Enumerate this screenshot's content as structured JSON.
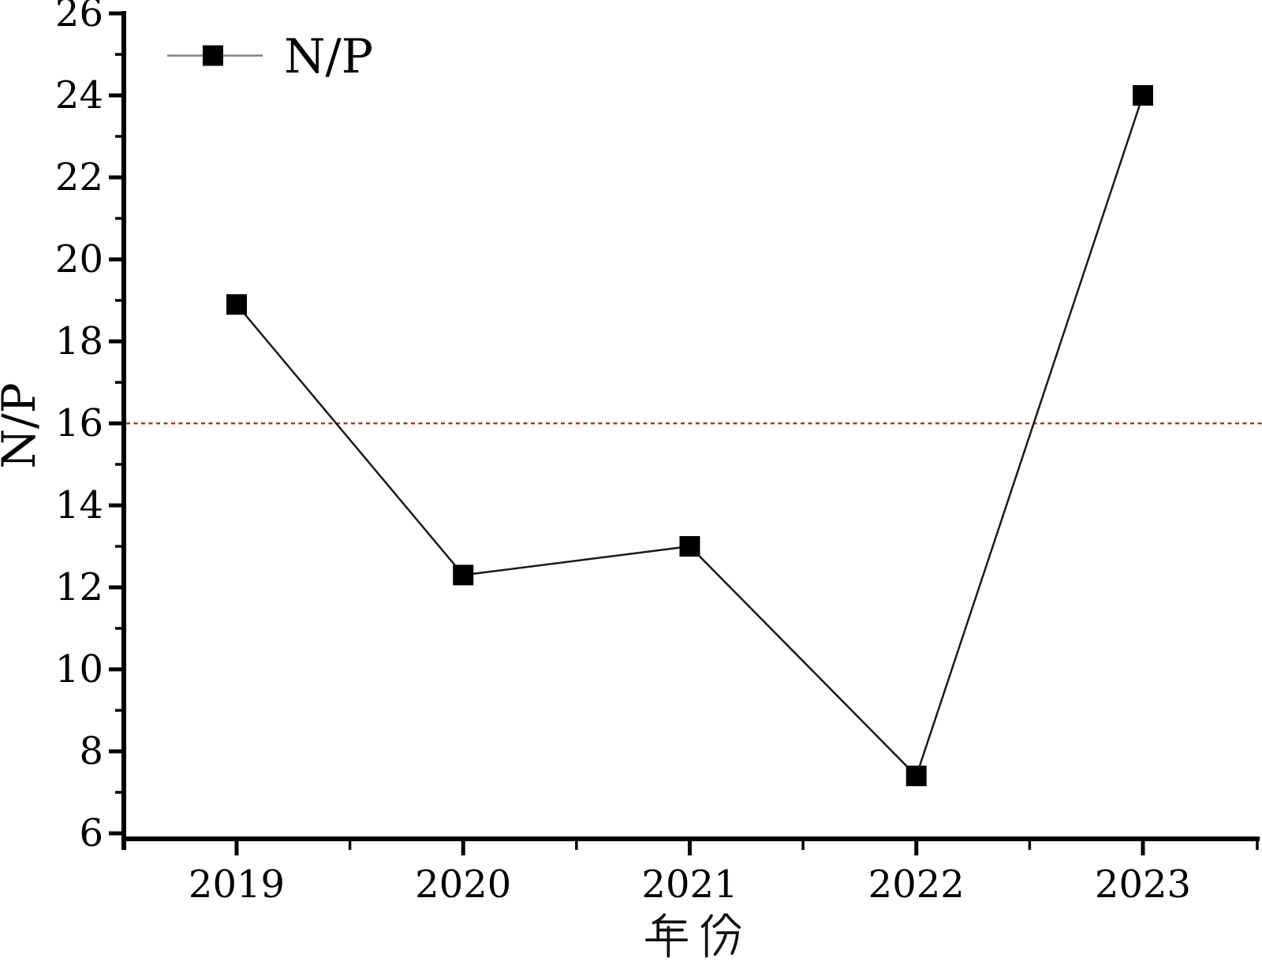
{
  "chart_data": {
    "type": "line",
    "title": "",
    "categories": [
      "2019",
      "2020",
      "2021",
      "2022",
      "2023"
    ],
    "series": [
      {
        "name": "N/P",
        "values": [
          18.9,
          12.3,
          13.0,
          7.4,
          24.0
        ]
      }
    ],
    "xlabel": "年份",
    "ylabel": "N/P",
    "ylim": [
      6,
      26
    ],
    "y_major_ticks": [
      26,
      24,
      22,
      20,
      18,
      16,
      14,
      12,
      10,
      8,
      6
    ],
    "y_minor_step": 1,
    "x_minor_ticks_between_categories": true,
    "grid": false,
    "legend": {
      "position": "top-left",
      "entries": [
        "N/P"
      ]
    },
    "reference_line": {
      "y": 16,
      "style": "dashed",
      "color": "#bf2d24"
    },
    "line_color": "#1a1a1a",
    "marker": "square",
    "marker_color": "#000000",
    "legend_line_color": "#808080",
    "axis_color": "#000000"
  }
}
